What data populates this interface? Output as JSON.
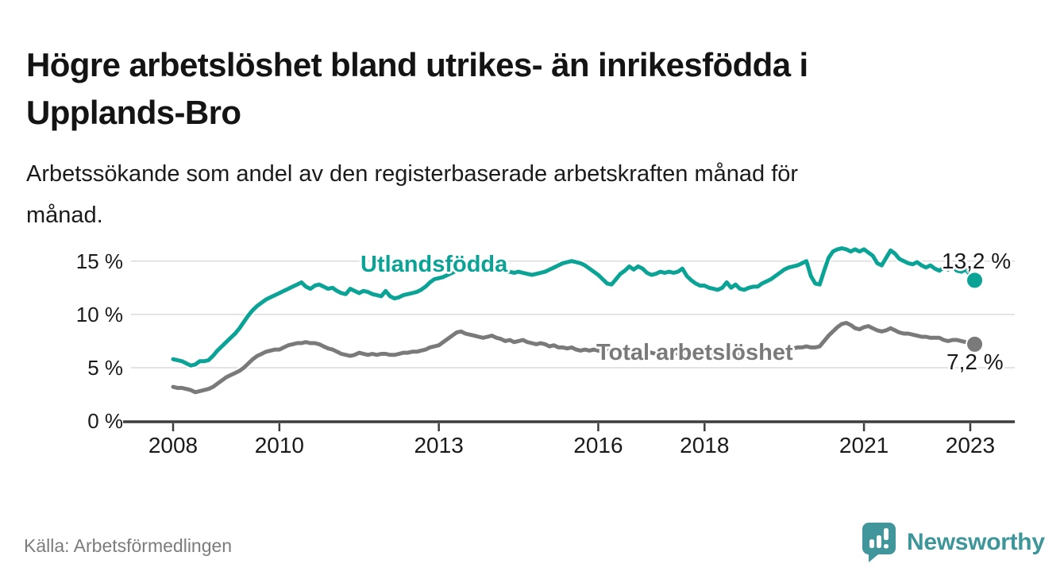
{
  "header": {
    "title_lines": [
      "Högre arbetslöshet bland utrikes- än inrikesfödda i",
      "Upplands-Bro"
    ],
    "subtitle_lines": [
      "Arbetssökande som andel av den registerbaserade arbetskraften månad för",
      "månad."
    ]
  },
  "footer": {
    "source": "Källa: Arbetsförmedlingen",
    "brand": "Newsworthy",
    "logo_icon": "bar-chart-speech-bubble-icon"
  },
  "colors": {
    "accent_teal": "#0aa396",
    "series_gray": "#7a7a7a",
    "logo_teal": "#40969b",
    "grid": "#dedede",
    "axis": "#3d3d3d",
    "text": "#1a1a1a",
    "muted": "#7c7c7c"
  },
  "chart_data": {
    "type": "line",
    "x_unit": "month",
    "x_start": "2008-01",
    "x_end": "2023-02",
    "x_tick_years": [
      2008,
      2010,
      2013,
      2016,
      2018,
      2021,
      2023
    ],
    "y_ticks_percent": [
      0,
      5,
      10,
      15
    ],
    "y_tick_suffix": " %",
    "ylim": [
      0,
      17
    ],
    "grid": "horizontal",
    "legend": "inline-labels",
    "series": [
      {
        "name": "Utlandsfödda",
        "color": "#0aa396",
        "end_label": "13,2 %",
        "end_value": 13.2,
        "values": [
          5.8,
          5.7,
          5.6,
          5.4,
          5.2,
          5.3,
          5.6,
          5.6,
          5.7,
          6.1,
          6.6,
          7.0,
          7.4,
          7.8,
          8.2,
          8.7,
          9.3,
          9.9,
          10.4,
          10.8,
          11.1,
          11.4,
          11.6,
          11.8,
          12.0,
          12.2,
          12.4,
          12.6,
          12.8,
          13.0,
          12.6,
          12.4,
          12.7,
          12.8,
          12.6,
          12.4,
          12.5,
          12.2,
          12.0,
          11.9,
          12.4,
          12.2,
          12.0,
          12.2,
          12.1,
          11.9,
          11.8,
          11.7,
          12.2,
          11.7,
          11.5,
          11.6,
          11.8,
          11.9,
          12.0,
          12.1,
          12.3,
          12.6,
          13.0,
          13.3,
          13.4,
          13.5,
          13.7,
          13.9,
          14.1,
          14.3,
          14.2,
          14.4,
          14.3,
          14.2,
          14.3,
          14.2,
          14.3,
          14.2,
          14.1,
          14.0,
          14.0,
          13.9,
          14.0,
          13.9,
          13.8,
          13.7,
          13.8,
          13.9,
          14.0,
          14.2,
          14.4,
          14.6,
          14.8,
          14.9,
          15.0,
          14.9,
          14.8,
          14.6,
          14.3,
          14.0,
          13.7,
          13.3,
          12.9,
          12.8,
          13.3,
          13.8,
          14.1,
          14.5,
          14.2,
          14.5,
          14.3,
          13.9,
          13.7,
          13.8,
          14.0,
          13.9,
          14.0,
          13.9,
          14.0,
          14.3,
          13.6,
          13.2,
          12.9,
          12.7,
          12.7,
          12.5,
          12.4,
          12.3,
          12.5,
          13.0,
          12.5,
          12.8,
          12.4,
          12.3,
          12.5,
          12.6,
          12.6,
          12.9,
          13.1,
          13.3,
          13.6,
          13.9,
          14.2,
          14.4,
          14.5,
          14.6,
          14.8,
          15.0,
          13.6,
          12.9,
          12.8,
          14.1,
          15.3,
          15.9,
          16.1,
          16.2,
          16.1,
          15.9,
          16.1,
          15.9,
          16.1,
          15.8,
          15.5,
          14.8,
          14.6,
          15.3,
          16.0,
          15.7,
          15.2,
          15.0,
          14.8,
          14.7,
          14.9,
          14.6,
          14.4,
          14.6,
          14.3,
          14.1,
          14.4,
          14.2,
          14.5,
          14.1,
          14.0,
          14.2,
          13.7,
          13.2
        ]
      },
      {
        "name": "Total arbetslöshet",
        "color": "#7a7a7a",
        "end_label": "7,2 %",
        "end_value": 7.2,
        "values": [
          3.2,
          3.1,
          3.1,
          3.0,
          2.9,
          2.7,
          2.8,
          2.9,
          3.0,
          3.2,
          3.5,
          3.8,
          4.1,
          4.3,
          4.5,
          4.7,
          5.0,
          5.4,
          5.8,
          6.1,
          6.3,
          6.5,
          6.6,
          6.7,
          6.7,
          6.9,
          7.1,
          7.2,
          7.3,
          7.3,
          7.4,
          7.3,
          7.3,
          7.2,
          7.0,
          6.8,
          6.7,
          6.5,
          6.3,
          6.2,
          6.1,
          6.2,
          6.4,
          6.3,
          6.2,
          6.3,
          6.2,
          6.3,
          6.3,
          6.2,
          6.2,
          6.3,
          6.4,
          6.4,
          6.5,
          6.5,
          6.6,
          6.7,
          6.9,
          7.0,
          7.1,
          7.4,
          7.7,
          8.0,
          8.3,
          8.4,
          8.2,
          8.1,
          8.0,
          7.9,
          7.8,
          7.9,
          8.0,
          7.8,
          7.7,
          7.5,
          7.6,
          7.4,
          7.5,
          7.6,
          7.4,
          7.3,
          7.2,
          7.3,
          7.2,
          7.0,
          7.1,
          6.9,
          6.9,
          6.8,
          6.9,
          6.7,
          6.6,
          6.7,
          6.6,
          6.7,
          6.6,
          6.5,
          6.6,
          6.7,
          6.6,
          6.5,
          6.6,
          6.5,
          6.4,
          6.5,
          6.4,
          6.5,
          6.4,
          6.3,
          6.4,
          6.4,
          6.3,
          6.4,
          6.3,
          6.4,
          6.3,
          6.2,
          6.3,
          6.4,
          6.3,
          6.2,
          6.2,
          6.3,
          6.3,
          6.4,
          6.3,
          6.2,
          6.3,
          6.4,
          6.4,
          6.5,
          6.4,
          6.5,
          6.5,
          6.6,
          6.6,
          6.7,
          6.7,
          6.8,
          6.8,
          6.9,
          6.9,
          7.0,
          6.9,
          6.9,
          7.0,
          7.5,
          8.0,
          8.4,
          8.8,
          9.1,
          9.2,
          9.0,
          8.7,
          8.6,
          8.8,
          8.9,
          8.7,
          8.5,
          8.4,
          8.5,
          8.7,
          8.5,
          8.3,
          8.2,
          8.2,
          8.1,
          8.0,
          7.9,
          7.9,
          7.8,
          7.8,
          7.8,
          7.6,
          7.5,
          7.6,
          7.6,
          7.5,
          7.4,
          7.4,
          7.2
        ]
      }
    ]
  }
}
